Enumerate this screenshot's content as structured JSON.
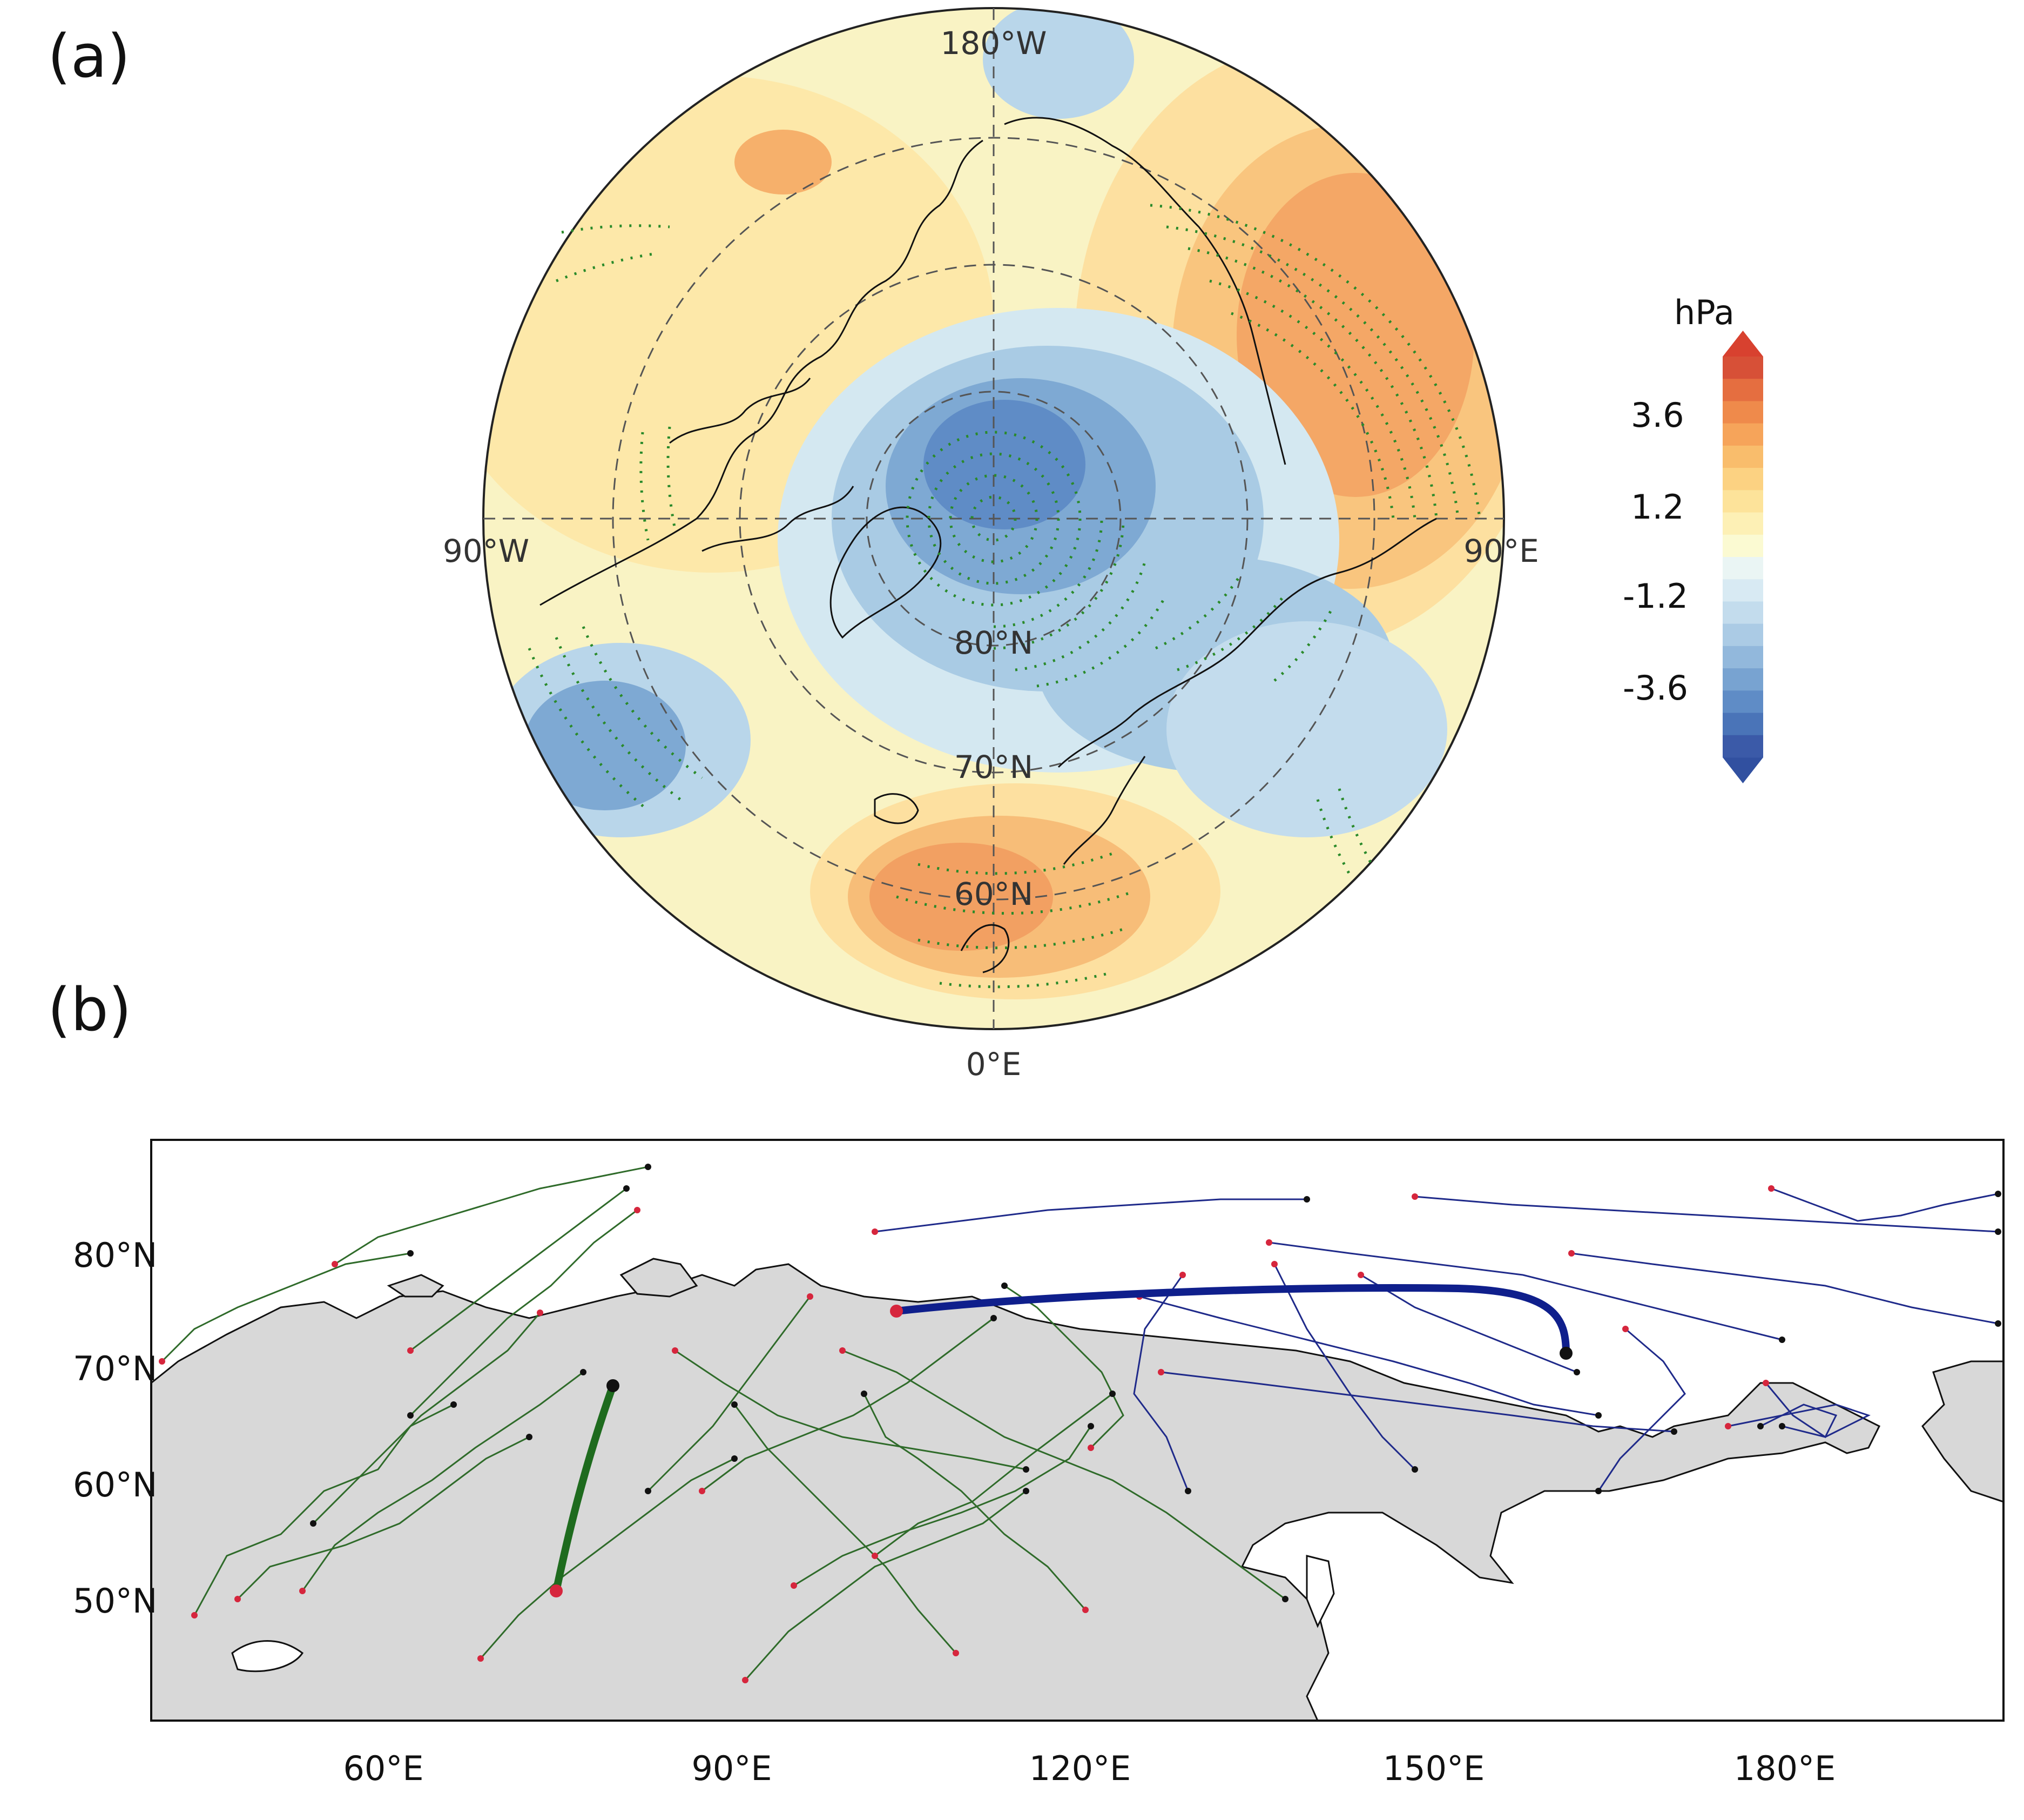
{
  "panel_a": {
    "label": "(a)",
    "lon_labels": {
      "top": "180°W",
      "left": "90°W",
      "right": "90°E",
      "bottom": "0°E"
    },
    "lat_labels": [
      "80°N",
      "70°N",
      "60°N"
    ],
    "colorbar": {
      "unit": "hPa",
      "tick_labels": [
        "3.6",
        "1.2",
        "-1.2",
        "-3.6"
      ],
      "colors": [
        "#3b5aa8",
        "#4a74b8",
        "#5f8cc6",
        "#78a3d1",
        "#92b8dc",
        "#abcbe5",
        "#c3dced",
        "#d8eaf3",
        "#eaf5f4",
        "#fbfad2",
        "#fdf0b5",
        "#fde39a",
        "#fcd282",
        "#f9bd6c",
        "#f6a45a",
        "#ef8a4b",
        "#e56e40",
        "#d75037"
      ],
      "arrow_colors": {
        "max": "#d8412f",
        "min": "#3150a0"
      }
    },
    "anomaly_colors": {
      "strong_low": "#4f78b8",
      "low": "#8fb5da",
      "weak_low": "#cfe3ef",
      "neutral": "#f8f4c9",
      "weak_high": "#fde7a6",
      "high": "#f8c27a",
      "strong_high": "#ee8f55"
    }
  },
  "panel_b": {
    "label": "(b)",
    "x_tick_labels": [
      "60°E",
      "90°E",
      "120°E",
      "150°E",
      "180°E"
    ],
    "y_tick_labels": [
      "80°N",
      "70°N",
      "60°N",
      "50°N"
    ],
    "colors": {
      "land": "#d8d8d8",
      "sea": "#ffffff",
      "green_tracks": "#2f6b2a",
      "blue_tracks": "#1f2a8a",
      "start_dots": "#d6263d",
      "end_dots": "#111111",
      "green_mean_track": "#1e6b1e",
      "blue_mean_track": "#0f1f8c"
    }
  }
}
